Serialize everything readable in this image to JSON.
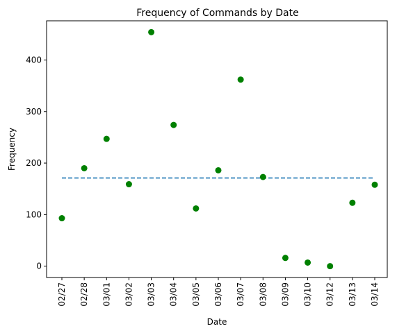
{
  "chart_data": {
    "type": "scatter",
    "title": "Frequency of Commands by Date",
    "xlabel": "Date",
    "ylabel": "Frequency",
    "categories": [
      "02/27",
      "02/28",
      "03/01",
      "03/02",
      "03/03",
      "03/04",
      "03/05",
      "03/06",
      "03/07",
      "03/08",
      "03/09",
      "03/10",
      "03/12",
      "03/13",
      "03/14"
    ],
    "series": [
      {
        "values": [
          93,
          190,
          247,
          159,
          454,
          274,
          112,
          186,
          362,
          173,
          16,
          7,
          0,
          123,
          158
        ]
      }
    ],
    "reference_line": {
      "value": 171,
      "style": "dashed"
    },
    "ylim": [
      -22,
      476
    ],
    "yticks": [
      0,
      100,
      200,
      300,
      400
    ],
    "grid": false,
    "colors": {
      "points": "#008000",
      "reference_line": "#1f77b4"
    }
  }
}
